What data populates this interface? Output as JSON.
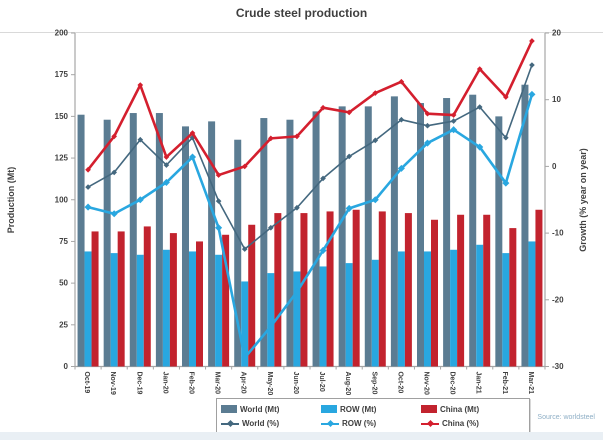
{
  "page": {
    "title": "Crude steel production",
    "source": "Source: worldsteel"
  },
  "chart_data": {
    "type": "bar",
    "subtype": "combo-bar-line-dual-axis",
    "title": "Crude steel production",
    "categories": [
      "Oct-19",
      "Nov-19",
      "Dec-19",
      "Jan-20",
      "Feb-20",
      "Mar-20",
      "Apr-20",
      "May-20",
      "Jun-20",
      "Jul-20",
      "Aug-20",
      "Sep-20",
      "Oct-20",
      "Nov-20",
      "Dec-20",
      "Jan-21",
      "Feb-21",
      "Mar-21"
    ],
    "bar_series": [
      {
        "name": "World (Mt)",
        "axis": "left",
        "color": "#5b7c92",
        "values": [
          151,
          148,
          152,
          152,
          144,
          147,
          136,
          149,
          148,
          153,
          156,
          156,
          162,
          158,
          161,
          163,
          150,
          169
        ]
      },
      {
        "name": "ROW (Mt)",
        "axis": "left",
        "color": "#29a7e0",
        "values": [
          69,
          68,
          67,
          70,
          69,
          67,
          51,
          56,
          57,
          60,
          62,
          64,
          69,
          69,
          70,
          73,
          68,
          75
        ]
      },
      {
        "name": "China (Mt)",
        "axis": "left",
        "color": "#c2232e",
        "values": [
          81,
          81,
          84,
          80,
          75,
          79,
          85,
          92,
          92,
          93,
          94,
          93,
          92,
          88,
          91,
          91,
          83,
          94
        ]
      }
    ],
    "line_series": [
      {
        "name": "World (%)",
        "axis": "right",
        "color": "#44687f",
        "width": 1.6,
        "marker": 4,
        "values": [
          -3.1,
          -0.9,
          4.0,
          0.2,
          4.3,
          -5.2,
          -12.4,
          -9.2,
          -6.2,
          -1.8,
          1.5,
          3.9,
          7.0,
          6.1,
          6.8,
          8.9,
          4.3,
          15.2
        ]
      },
      {
        "name": "ROW (%)",
        "axis": "right",
        "color": "#29a7e0",
        "width": 2.6,
        "marker": 5,
        "values": [
          -6.1,
          -7.1,
          -5.0,
          -2.4,
          1.4,
          -9.2,
          -28.7,
          -24.0,
          -18.8,
          -12.6,
          -6.3,
          -5.0,
          -0.3,
          3.5,
          5.5,
          2.9,
          -2.5,
          10.8
        ]
      },
      {
        "name": "China (%)",
        "axis": "right",
        "color": "#d41f2e",
        "width": 2.6,
        "marker": 4,
        "values": [
          -0.5,
          4.5,
          12.2,
          1.4,
          5.0,
          -1.3,
          0.0,
          4.2,
          4.5,
          8.8,
          8.1,
          11.0,
          12.7,
          7.9,
          7.7,
          14.6,
          10.4,
          18.8
        ]
      }
    ],
    "left_axis": {
      "label": "Production (Mt)",
      "min": 0,
      "max": 200,
      "step": 25
    },
    "right_axis": {
      "label": "Growth (% year on year)",
      "min": -30,
      "max": 20,
      "step": 10
    },
    "grid": false,
    "legend_position": "bottom"
  }
}
